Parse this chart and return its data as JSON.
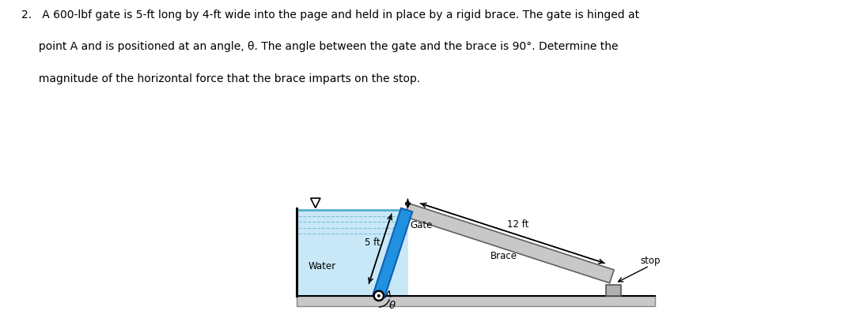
{
  "fig_width": 10.77,
  "fig_height": 4.03,
  "dpi": 100,
  "bg_color": "#ffffff",
  "water_fill_color": "#c8e8f8",
  "water_surface_color": "#5aaed0",
  "water_dash_color": "#7ec0d8",
  "gate_color": "#2090e0",
  "gate_edge_color": "#1060b0",
  "brace_color": "#c8c8c8",
  "brace_edge_color": "#606060",
  "ground_color": "#c8c8c8",
  "ground_edge_color": "#888888",
  "stop_color": "#b0b0b0",
  "stop_edge_color": "#555555",
  "text_color": "#000000",
  "label_fontsize": 8.5,
  "title_line1": "2.   A 600-lbf gate is 5-ft long by 4-ft wide into the page and held in place by a rigid brace. The gate is hinged at",
  "title_line2": "     point A and is positioned at an angle, θ. The angle between the gate and the brace is 90°. Determine the",
  "title_line3": "     magnitude of the horizontal force that the brace imparts on the stop.",
  "title_fontsize": 10.0
}
